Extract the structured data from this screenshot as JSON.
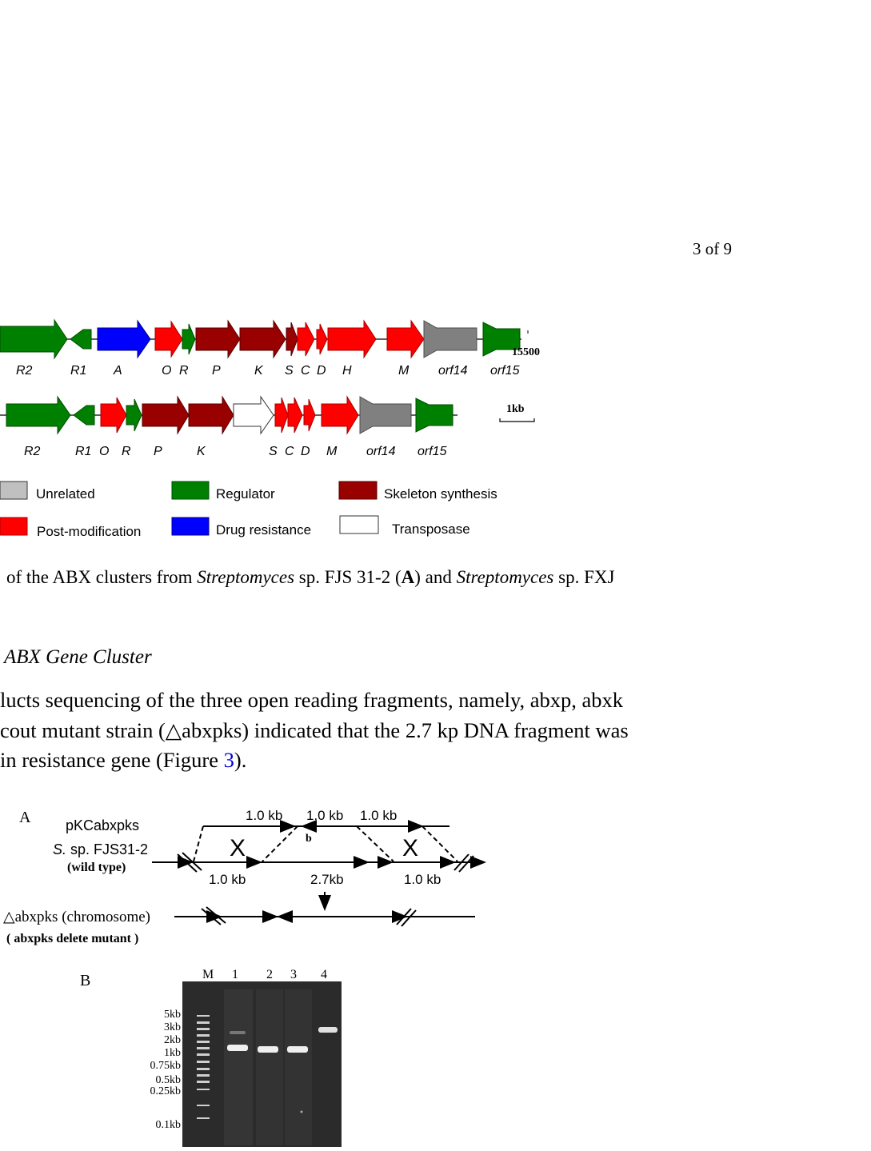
{
  "header": {
    "page_number": "3 of 9"
  },
  "figure2": {
    "row1_end_label": "15500",
    "row1_labels": [
      "R2",
      "R1",
      "A",
      "O",
      "R",
      "P",
      "K",
      "S",
      "C",
      "D",
      "H",
      "M",
      "orf14",
      "orf15"
    ],
    "row2_labels": [
      "R2",
      "R1",
      "O",
      "R",
      "P",
      "K",
      "S",
      "C",
      "D",
      "M",
      "orf14",
      "orf15"
    ],
    "scale_label": "1kb",
    "legend": [
      {
        "label": "Unrelated",
        "color": "#c0c0c0"
      },
      {
        "label": "Regulator",
        "color": "#008000"
      },
      {
        "label": "Skeleton synthesis",
        "color": "#990000"
      },
      {
        "label": "Post-modification",
        "color": "#ff0000"
      },
      {
        "label": "Drug resistance",
        "color": "#0000ff"
      },
      {
        "label": "Transposase",
        "color": "#ffffff"
      }
    ],
    "caption": {
      "part1": " of the ABX clusters from ",
      "species1": "Streptomyces",
      "part2": " sp. FJS 31-2 (",
      "bold_a": "A",
      "part3": ") and ",
      "species2": "Streptomyces",
      "part4": " sp. FXJ"
    }
  },
  "section": {
    "subheading": "ABX Gene Cluster",
    "line1": "lucts sequencing of the three open reading fragments, namely, abxp, abxk",
    "line2": "cout mutant strain (△abxpks) indicated that the 2.7 kp DNA fragment was",
    "line3_pre": "in resistance gene (Figure ",
    "line3_link": "3",
    "line3_post": ")."
  },
  "figure3": {
    "panel_a_label": "A",
    "plasmid": "pKCabxpks",
    "strain_italic": "S.",
    "strain_rest": " sp. FJS31-2",
    "wild_type": "(wild type)",
    "top_kb": [
      "1.0 kb",
      "1.0 kb",
      "1.0 kb"
    ],
    "mid_kb": [
      "1.0 kb",
      "2.7kb",
      "1.0 kb"
    ],
    "mutant_label": "△abxpks (chromosome)",
    "mutant_sub": "( abxpks delete mutant )",
    "panel_b_label": "B",
    "gel_lanes": [
      "M",
      "1",
      "2",
      "3",
      "4"
    ],
    "ladder": [
      "5kb",
      "3kb",
      "2kb",
      "1kb",
      "0.75kb",
      "0.5kb",
      "0.25kb",
      "0.1kb"
    ]
  }
}
